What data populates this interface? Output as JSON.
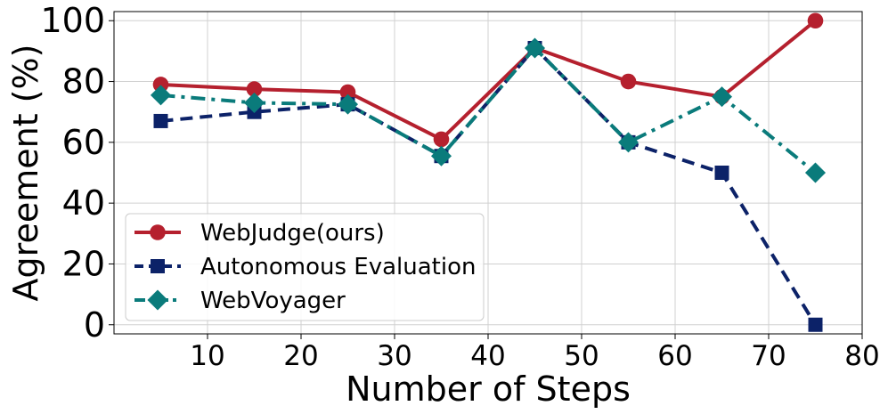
{
  "chart_data": {
    "type": "line",
    "title": "",
    "xlabel": "Number of Steps",
    "ylabel": "Agreement (%)",
    "xlim": [
      0,
      80
    ],
    "ylim": [
      -3,
      103
    ],
    "xticks": [
      10,
      20,
      30,
      40,
      50,
      60,
      70,
      80
    ],
    "yticks": [
      0,
      20,
      40,
      60,
      80,
      100
    ],
    "grid": true,
    "legend_position": "lower-left",
    "x": [
      5,
      15,
      25,
      35,
      45,
      55,
      65,
      75
    ],
    "series": [
      {
        "name": "WebJudge(ours)",
        "values": [
          79,
          77.5,
          76.5,
          61,
          91,
          80,
          75,
          100
        ],
        "color": "#b5202e",
        "marker": "circle",
        "linestyle": "solid"
      },
      {
        "name": "Autonomous Evaluation",
        "values": [
          67,
          70,
          72.5,
          55.5,
          91,
          60,
          50,
          0
        ],
        "color": "#0c2268",
        "marker": "square",
        "linestyle": "dashed"
      },
      {
        "name": "WebVoyager",
        "values": [
          75.5,
          73,
          72.5,
          55.5,
          91,
          60,
          75,
          50
        ],
        "color": "#0a7b7b",
        "marker": "diamond",
        "linestyle": "dashdot"
      }
    ]
  }
}
